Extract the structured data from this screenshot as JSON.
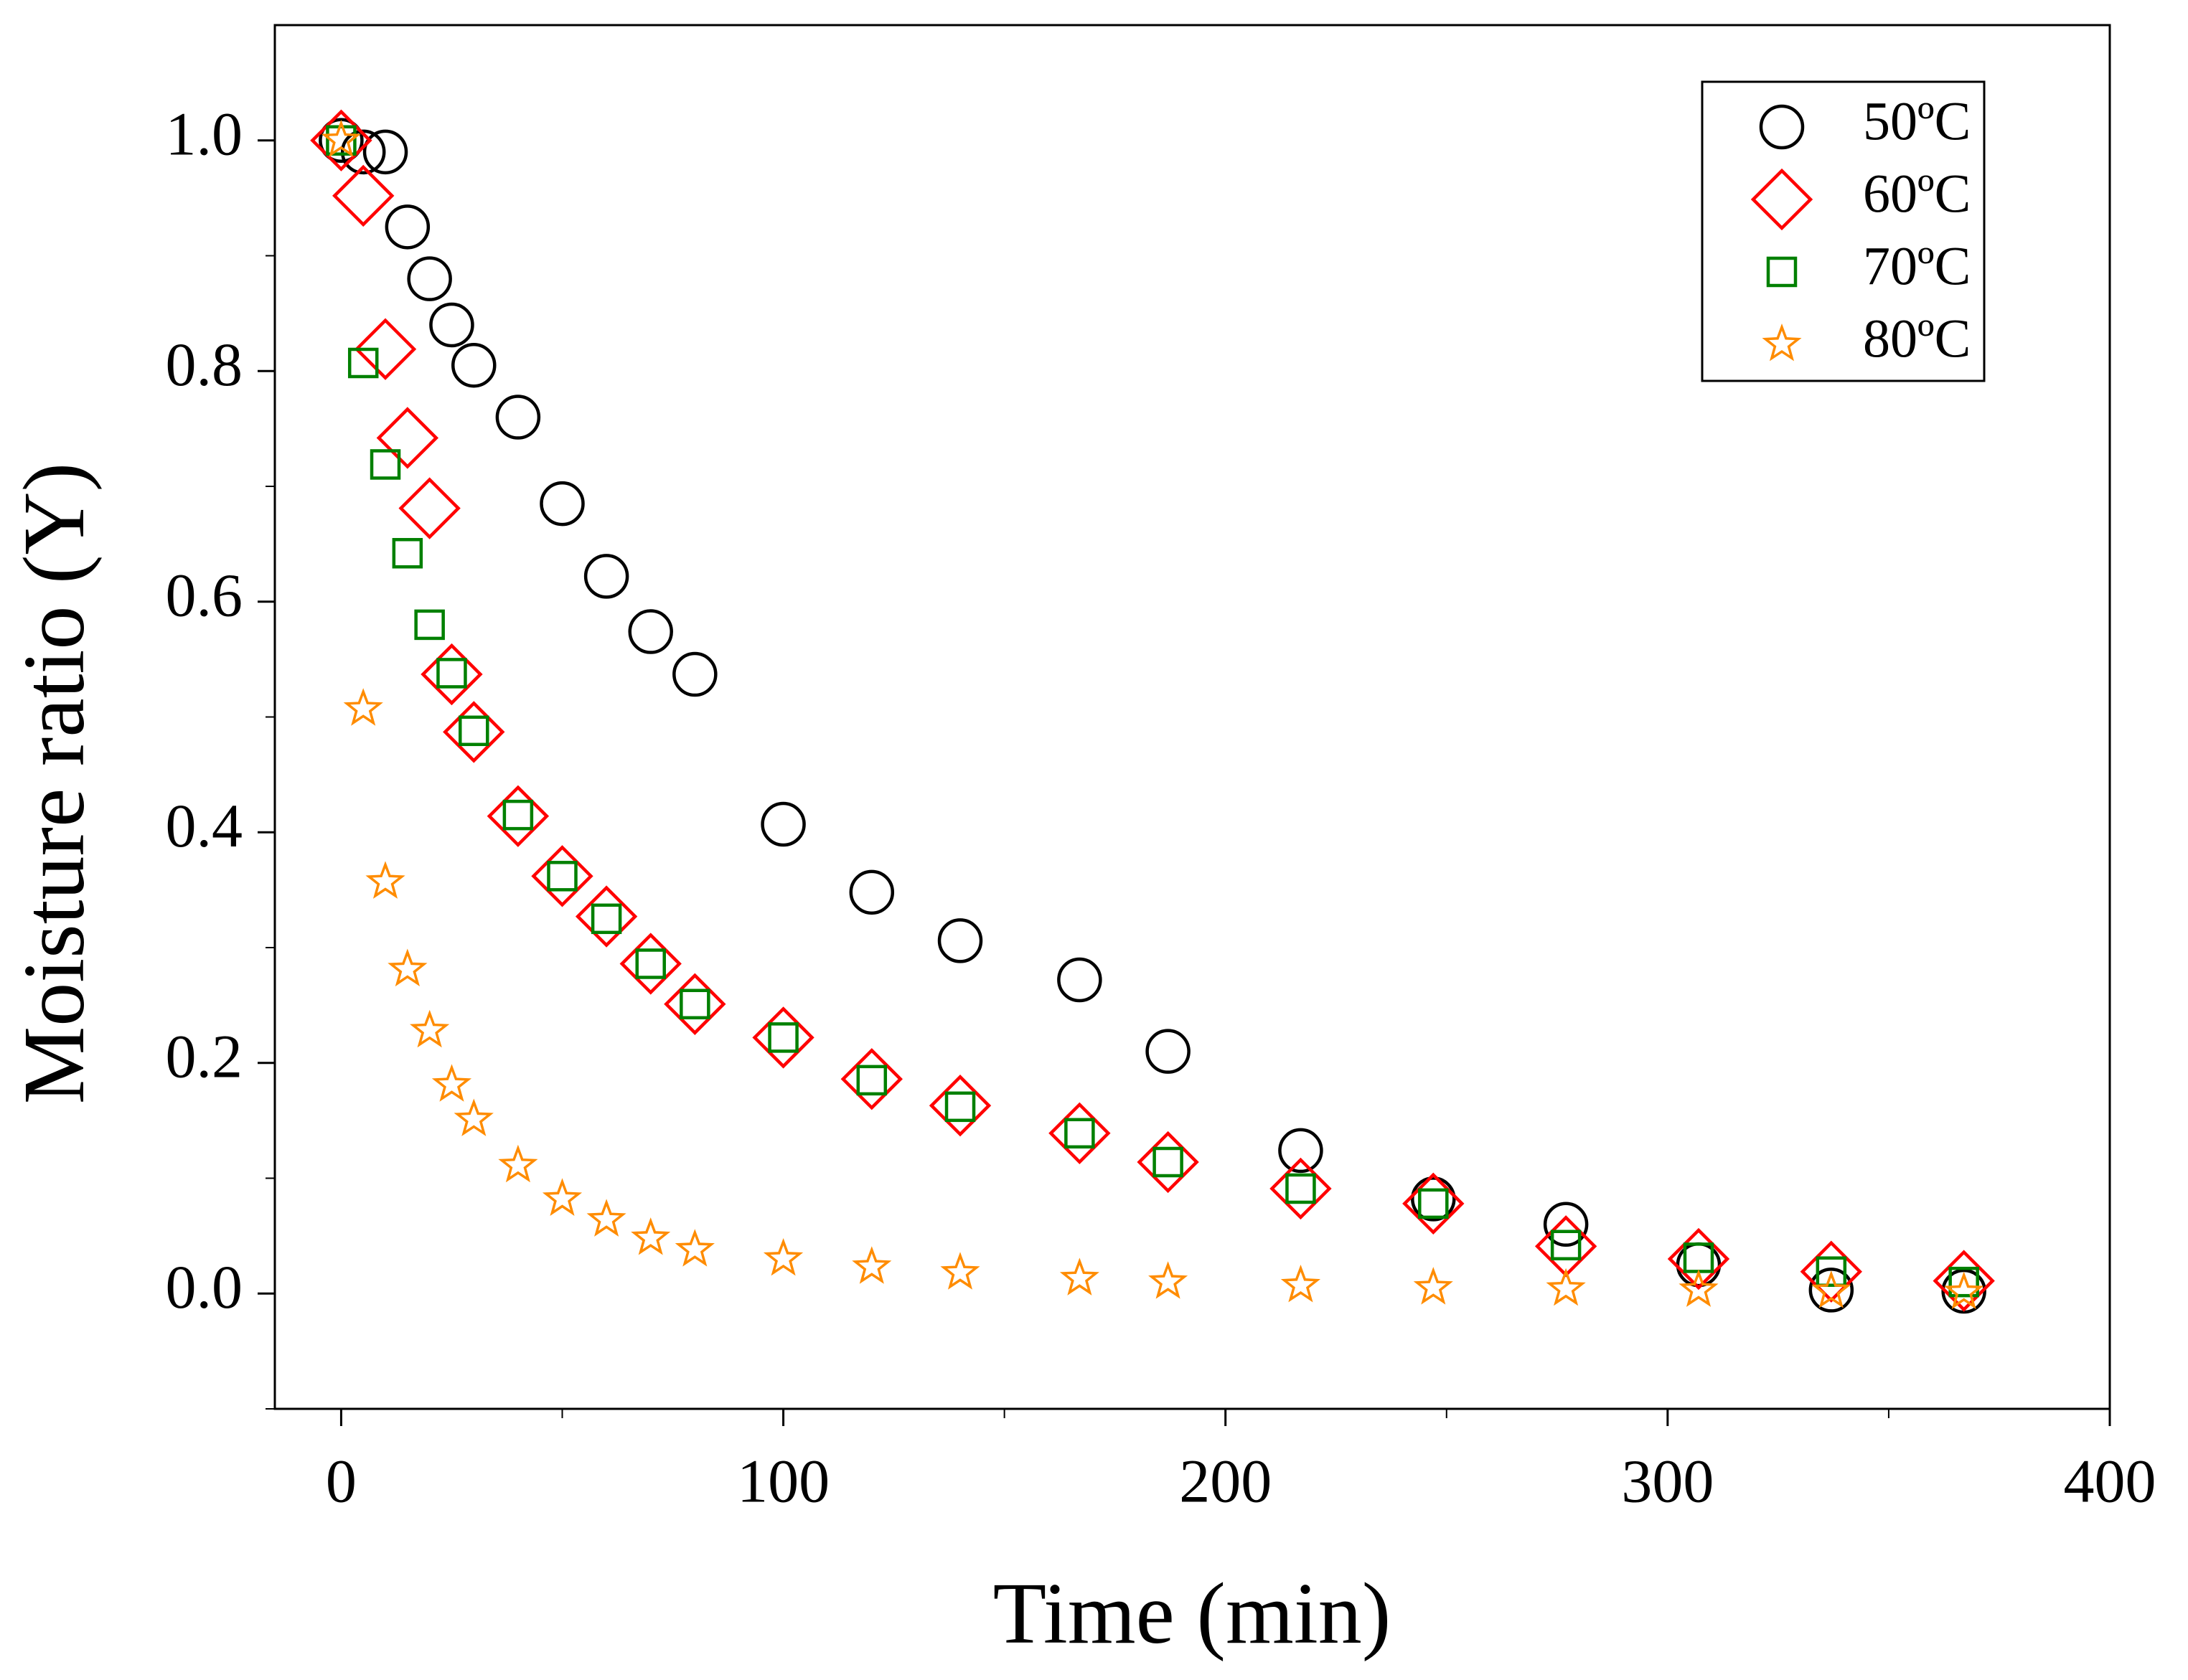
{
  "chart_data": {
    "type": "scatter",
    "xlabel": "Time (min)",
    "ylabel": "Moisture ratio (Y)",
    "x": [
      0,
      5,
      10,
      15,
      20,
      25,
      30,
      40,
      50,
      60,
      70,
      80,
      100,
      120,
      140,
      167,
      187,
      217,
      247,
      277,
      307,
      337,
      367
    ],
    "series": [
      {
        "name": "50ºC",
        "color": "#000000",
        "marker": "circle",
        "values": [
          1.0,
          0.99,
          0.99,
          0.925,
          0.88,
          0.84,
          0.805,
          0.76,
          0.685,
          0.622,
          0.574,
          0.537,
          0.407,
          0.348,
          0.306,
          0.272,
          0.21,
          0.124,
          0.082,
          0.06,
          0.025,
          0.003,
          0.002
        ]
      },
      {
        "name": "60ºC",
        "color": "#ff0000",
        "marker": "diamond",
        "values": [
          1.0,
          0.952,
          0.819,
          0.742,
          0.681,
          0.537,
          0.487,
          0.414,
          0.362,
          0.327,
          0.286,
          0.251,
          0.222,
          0.186,
          0.163,
          0.139,
          0.114,
          0.091,
          0.078,
          0.041,
          0.03,
          0.019,
          0.011
        ]
      },
      {
        "name": "70ºC",
        "color": "#008000",
        "marker": "square",
        "values": [
          1.0,
          0.807,
          0.719,
          0.642,
          0.58,
          0.538,
          0.488,
          0.415,
          0.362,
          0.325,
          0.286,
          0.251,
          0.222,
          0.185,
          0.162,
          0.139,
          0.114,
          0.091,
          0.078,
          0.042,
          0.031,
          0.019,
          0.01
        ]
      },
      {
        "name": "80ºC",
        "color": "#ff8c00",
        "marker": "star",
        "values": [
          1.0,
          0.507,
          0.357,
          0.281,
          0.228,
          0.181,
          0.151,
          0.111,
          0.082,
          0.064,
          0.048,
          0.038,
          0.03,
          0.023,
          0.018,
          0.013,
          0.01,
          0.007,
          0.005,
          0.004,
          0.003,
          0.002,
          0.001
        ]
      }
    ],
    "xlim": [
      -15,
      400
    ],
    "ylim": [
      -0.1,
      1.1
    ],
    "xticks": [
      0,
      100,
      200,
      300,
      400
    ],
    "xminorticks": [
      50,
      150,
      250,
      350
    ],
    "yticks": [
      {
        "value": 0,
        "label": "0.0"
      },
      {
        "value": 0.2,
        "label": "0.2"
      },
      {
        "value": 0.4,
        "label": "0.4"
      },
      {
        "value": 0.6,
        "label": "0.6"
      },
      {
        "value": 0.8,
        "label": "0.8"
      },
      {
        "value": 1.0,
        "label": "1.0"
      }
    ],
    "yminorticks": [
      -0.1,
      0.1,
      0.3,
      0.5,
      0.7,
      0.9
    ],
    "grid": false,
    "legend": "upper right"
  }
}
